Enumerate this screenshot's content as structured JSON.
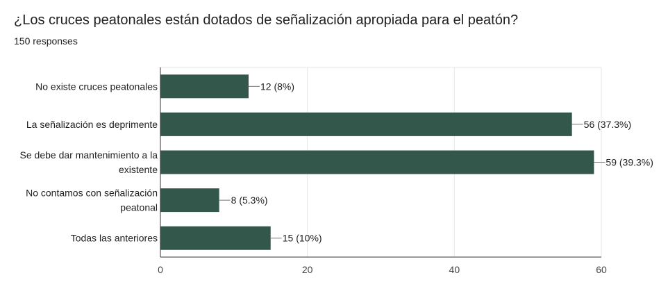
{
  "title": "¿Los cruces peatonales están dotados de señalización apropiada para el peatón?",
  "subtitle": "150 responses",
  "colors": {
    "bar": "#33584b",
    "grid": "#e6e6e6",
    "axis": "#333333",
    "text": "#202124",
    "tick": "#444444"
  },
  "chart_data": {
    "type": "bar",
    "orientation": "horizontal",
    "title": "¿Los cruces peatonales están dotados de señalización apropiada para el peatón?",
    "categories": [
      "No existe cruces peatonales",
      "La señalización es deprimente",
      "Se debe dar mantenimiento a la existente",
      "No contamos con señalización peatonal",
      "Todas las anteriores"
    ],
    "category_label_lines": [
      [
        "No existe cruces peatonales"
      ],
      [
        "La señalización es deprimente"
      ],
      [
        "Se debe dar mantenimiento a la",
        "existente"
      ],
      [
        "No contamos con señalización",
        "peatonal"
      ],
      [
        "Todas las anteriores"
      ]
    ],
    "values": [
      12,
      56,
      59,
      8,
      15
    ],
    "data_labels": [
      "12 (8%)",
      "56 (37.3%)",
      "59 (39.3%)",
      "8 (5.3%)",
      "15 (10%)"
    ],
    "xlim": [
      0,
      60
    ],
    "xticks": [
      0,
      20,
      40,
      60
    ],
    "grid": true,
    "xlabel": "",
    "ylabel": ""
  }
}
